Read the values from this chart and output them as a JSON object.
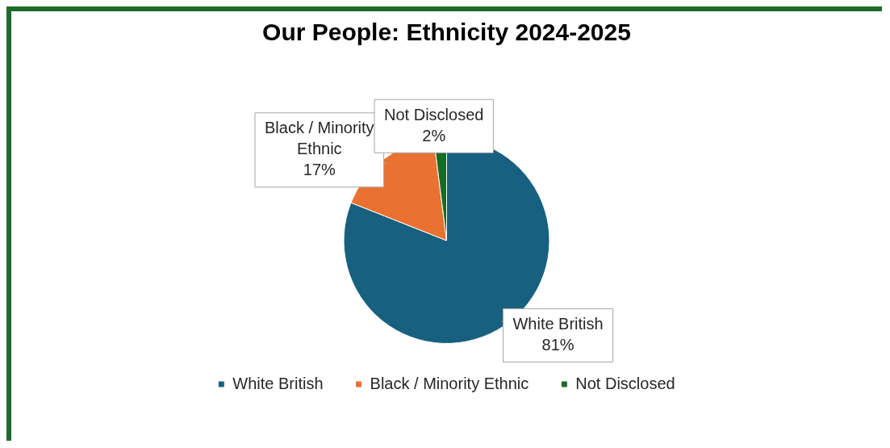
{
  "chart_data": {
    "type": "pie",
    "title": "Our People: Ethnicity 2024-2025",
    "categories": [
      "White British",
      "Black / Minority Ethnic",
      "Not Disclosed"
    ],
    "values": [
      81,
      17,
      2
    ],
    "colors": [
      "#17607f",
      "#e97132",
      "#196b24"
    ],
    "value_labels": [
      "81%",
      "17%",
      "2%"
    ],
    "legend": "bottom"
  }
}
